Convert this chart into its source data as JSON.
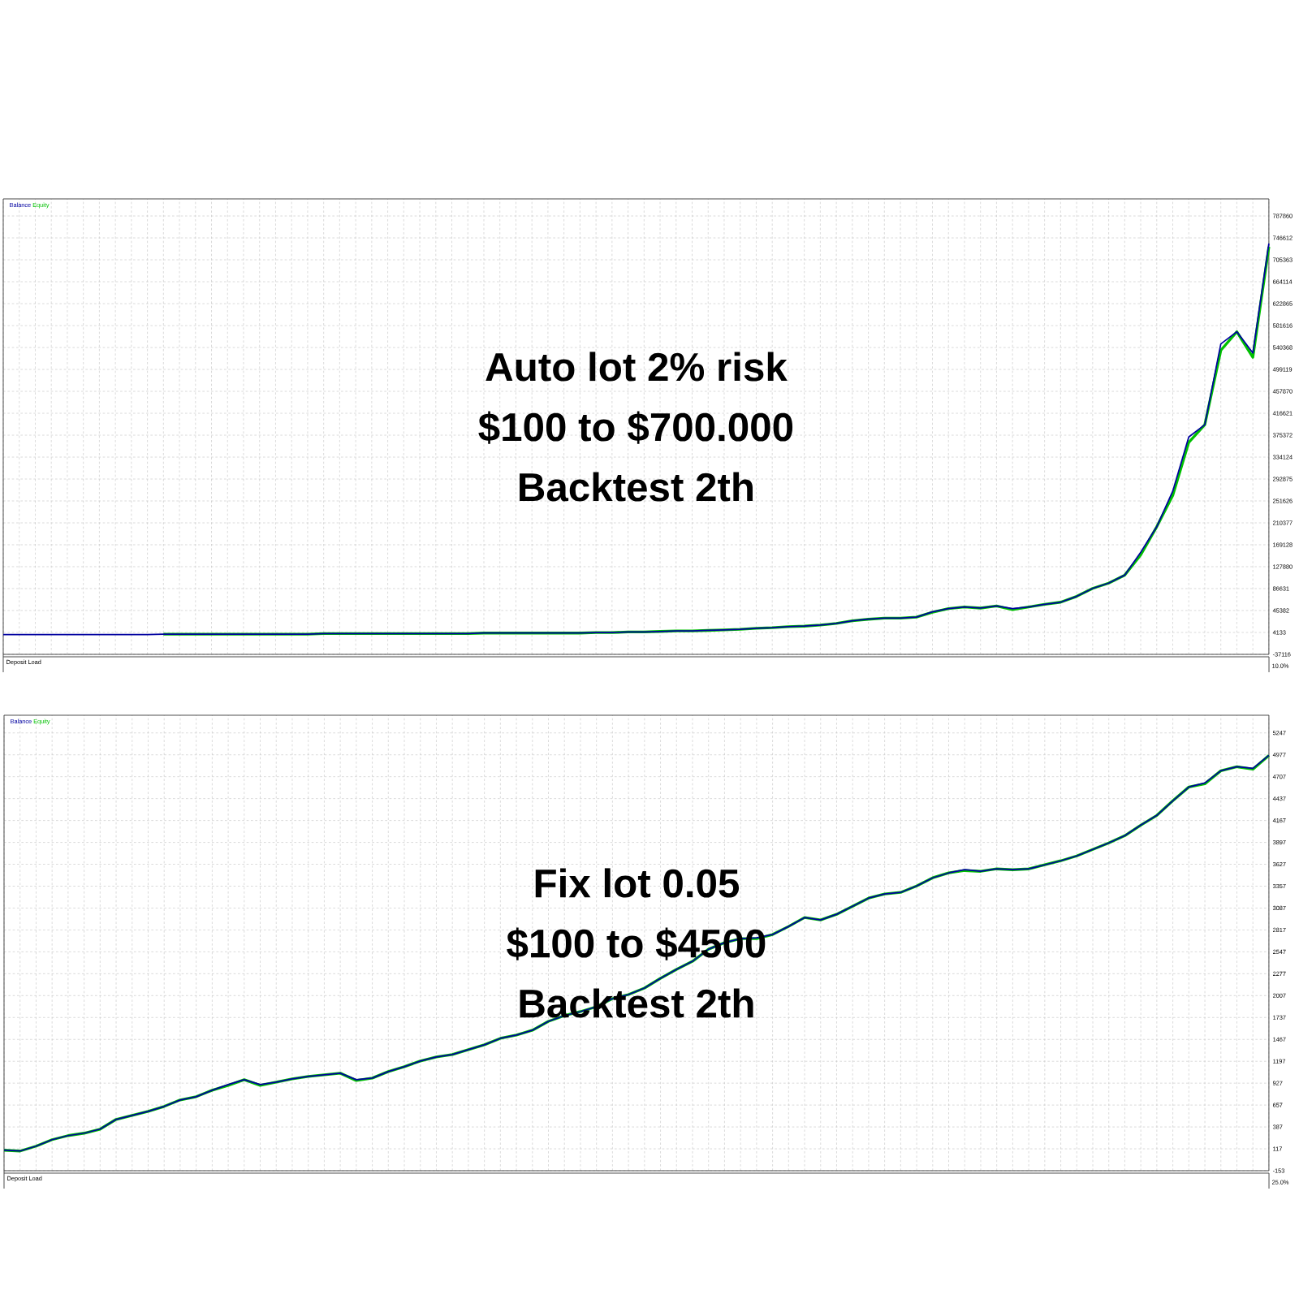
{
  "chart_data": [
    {
      "type": "line",
      "annotations": [
        "Auto lot 2% risk",
        "$100 to $700.000",
        "Backtest 2th",
        "Deposit Load",
        "10.0%"
      ],
      "categories": [
        null,
        null,
        null,
        null,
        null,
        null,
        null,
        null,
        null,
        null,
        null,
        null,
        null,
        null,
        null,
        null,
        null,
        null,
        null,
        null,
        null,
        null,
        null,
        null,
        null,
        null,
        null,
        null,
        null,
        null,
        null,
        null,
        null,
        null,
        null,
        null,
        null,
        null,
        null,
        null,
        null,
        null,
        null,
        null,
        null,
        null,
        null,
        null,
        null,
        null,
        null,
        null,
        null,
        null,
        null,
        null,
        null,
        null,
        null,
        null,
        null,
        null,
        null,
        null,
        null,
        null,
        null,
        null,
        null,
        null,
        null,
        null,
        null,
        null,
        null,
        null,
        null,
        null,
        null,
        null
      ],
      "series": [
        {
          "name": "Balance",
          "color": "#0000a0",
          "values": [
            0,
            0,
            0,
            0,
            0,
            0,
            0,
            0,
            0,
            0,
            1000,
            1000,
            1000,
            1000,
            1000,
            1000,
            1000,
            1000,
            1000,
            1000,
            2000,
            2000,
            2000,
            2000,
            2000,
            2000,
            2000,
            2000,
            2000,
            2000,
            3000,
            3000,
            3000,
            3000,
            3000,
            3000,
            3000,
            4000,
            4000,
            5000,
            5000,
            6000,
            7000,
            7000,
            8000,
            9000,
            10000,
            12000,
            13000,
            15000,
            16000,
            18000,
            21000,
            26000,
            29000,
            31000,
            31000,
            33000,
            43000,
            49000,
            52000,
            50000,
            54000,
            49000,
            52000,
            57000,
            61000,
            72000,
            87000,
            97000,
            112000,
            155000,
            203000,
            270000,
            372000,
            395000,
            547000,
            570000,
            530000,
            736000
          ]
        },
        {
          "name": "Equity",
          "color": "#00c000",
          "values": [
            null,
            null,
            null,
            null,
            null,
            null,
            null,
            null,
            null,
            null,
            1000,
            1000,
            1000,
            1000,
            1000,
            1000,
            1000,
            1000,
            1000,
            1000,
            2000,
            2000,
            2000,
            2000,
            2000,
            2000,
            2000,
            2000,
            2000,
            2000,
            3000,
            3000,
            3000,
            3000,
            3000,
            3000,
            3000,
            4000,
            4000,
            5000,
            5000,
            6000,
            7000,
            7000,
            8000,
            9000,
            10000,
            12000,
            13000,
            15000,
            16000,
            18000,
            21000,
            26000,
            29000,
            31000,
            31000,
            33000,
            42000,
            49000,
            52000,
            50000,
            54000,
            47000,
            52000,
            57000,
            61000,
            72000,
            87000,
            97000,
            112000,
            150000,
            203000,
            262000,
            362000,
            395000,
            535000,
            570000,
            522000,
            730000
          ]
        }
      ],
      "ylim": [
        -37116,
        820000
      ],
      "yticks": [
        -37116,
        4133,
        45382,
        86631,
        127880,
        169128,
        210377,
        251626,
        292875,
        334124,
        375372,
        416621,
        457870,
        499119,
        540368,
        581616,
        622865,
        664114,
        705363,
        746612,
        787860
      ],
      "tick_labels": "y",
      "grid": true,
      "legend": "top left"
    },
    {
      "type": "line",
      "annotations": [
        "Fix lot 0.05",
        "$100 to $4500",
        "Backtest 2th",
        "Deposit Load",
        "25.0%"
      ],
      "categories": [
        null,
        null,
        null,
        null,
        null,
        null,
        null,
        null,
        null,
        null,
        null,
        null,
        null,
        null,
        null,
        null,
        null,
        null,
        null,
        null,
        null,
        null,
        null,
        null,
        null,
        null,
        null,
        null,
        null,
        null,
        null,
        null,
        null,
        null,
        null,
        null,
        null,
        null,
        null,
        null,
        null,
        null,
        null,
        null,
        null,
        null,
        null,
        null,
        null,
        null,
        null,
        null,
        null,
        null,
        null,
        null,
        null,
        null,
        null,
        null,
        null,
        null,
        null,
        null,
        null,
        null,
        null,
        null,
        null,
        null,
        null,
        null,
        null,
        null,
        null,
        null,
        null,
        null,
        null,
        null
      ],
      "series": [
        {
          "name": "Balance",
          "color": "#0000a0",
          "values": [
            100,
            90,
            150,
            230,
            280,
            310,
            360,
            480,
            530,
            580,
            640,
            720,
            760,
            840,
            910,
            970,
            910,
            940,
            980,
            1010,
            1030,
            1050,
            970,
            990,
            1070,
            1130,
            1200,
            1250,
            1280,
            1340,
            1400,
            1480,
            1520,
            1580,
            1690,
            1760,
            1810,
            1870,
            1970,
            2020,
            2100,
            2220,
            2330,
            2430,
            2580,
            2660,
            2710,
            2720,
            2760,
            2860,
            2970,
            2940,
            3010,
            3110,
            3210,
            3260,
            3280,
            3360,
            3460,
            3520,
            3560,
            3540,
            3570,
            3560,
            3570,
            3620,
            3670,
            3730,
            3810,
            3890,
            3980,
            4110,
            4230,
            4410,
            4580,
            4630,
            4780,
            4830,
            4810,
            4970
          ]
        },
        {
          "name": "Equity",
          "color": "#00c000",
          "values": [
            100,
            90,
            150,
            230,
            280,
            310,
            360,
            480,
            530,
            580,
            640,
            720,
            760,
            840,
            900,
            970,
            900,
            940,
            980,
            1010,
            1030,
            1050,
            960,
            990,
            1070,
            1130,
            1200,
            1250,
            1280,
            1340,
            1400,
            1480,
            1520,
            1580,
            1690,
            1760,
            1810,
            1870,
            1970,
            2020,
            2100,
            2220,
            2330,
            2430,
            2580,
            2660,
            2710,
            2710,
            2760,
            2860,
            2970,
            2940,
            3010,
            3110,
            3210,
            3260,
            3280,
            3360,
            3460,
            3520,
            3550,
            3540,
            3570,
            3560,
            3570,
            3620,
            3670,
            3730,
            3810,
            3890,
            3980,
            4110,
            4230,
            4410,
            4580,
            4620,
            4780,
            4830,
            4800,
            4970
          ]
        }
      ],
      "ylim": [
        -153,
        5465
      ],
      "yticks": [
        -153,
        117,
        387,
        657,
        927,
        1197,
        1467,
        1737,
        2007,
        2277,
        2547,
        2817,
        3087,
        3357,
        3627,
        3897,
        4167,
        4437,
        4707,
        4977,
        5247
      ],
      "tick_labels": "y",
      "grid": true,
      "legend": "top left"
    }
  ]
}
